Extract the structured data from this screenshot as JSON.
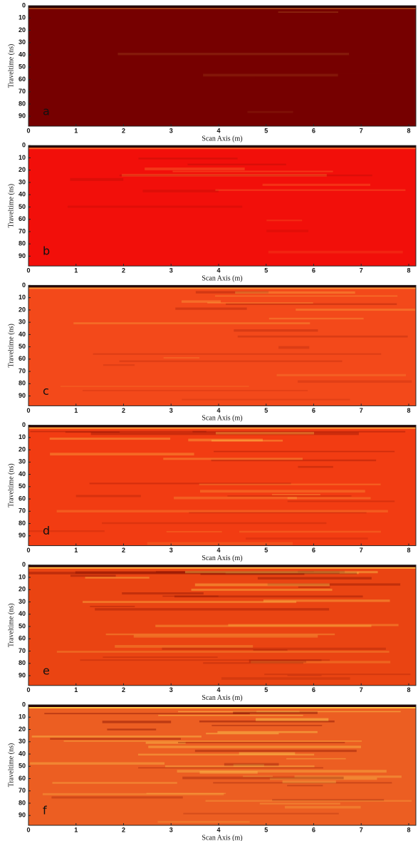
{
  "chart_data": [
    {
      "type": "radargram",
      "panel_label": "a",
      "color": "#760000",
      "xlabel": "Scan Axis (m)",
      "ylabel": "Traveltime (ns)",
      "xlim": [
        0,
        8.15
      ],
      "ylim": [
        0,
        98
      ],
      "xticks": [
        0,
        1,
        2,
        3,
        4,
        5,
        6,
        7,
        8
      ],
      "yticks": [
        0,
        10,
        20,
        30,
        40,
        50,
        60,
        70,
        80,
        90
      ]
    },
    {
      "type": "radargram",
      "panel_label": "b",
      "color": "#f20f0a",
      "xlabel": "Scan Axis (m)",
      "ylabel": "Traveltime (ns)",
      "xlim": [
        0,
        8.15
      ],
      "ylim": [
        0,
        98
      ],
      "xticks": [
        0,
        1,
        2,
        3,
        4,
        5,
        6,
        7,
        8
      ],
      "yticks": [
        0,
        10,
        20,
        30,
        40,
        50,
        60,
        70,
        80,
        90
      ]
    },
    {
      "type": "radargram",
      "panel_label": "c",
      "color": "#f3491a",
      "xlabel": "Scan Axis (m)",
      "ylabel": "Traveltime (ns)",
      "xlim": [
        0,
        8.15
      ],
      "ylim": [
        0,
        98
      ],
      "xticks": [
        0,
        1,
        2,
        3,
        4,
        5,
        6,
        7,
        8
      ],
      "yticks": [
        0,
        10,
        20,
        30,
        40,
        50,
        60,
        70,
        80,
        90
      ]
    },
    {
      "type": "radargram",
      "panel_label": "d",
      "color": "#f23c12",
      "xlabel": "Scan Axis (m)",
      "ylabel": "Traveltime (ns)",
      "xlim": [
        0,
        8.15
      ],
      "ylim": [
        0,
        98
      ],
      "xticks": [
        0,
        1,
        2,
        3,
        4,
        5,
        6,
        7,
        8
      ],
      "yticks": [
        0,
        10,
        20,
        30,
        40,
        50,
        60,
        70,
        80,
        90
      ]
    },
    {
      "type": "radargram",
      "panel_label": "e",
      "color": "#ea4412",
      "xlabel": "Scan Axis (m)",
      "ylabel": "Traveltime (ns)",
      "xlim": [
        0,
        8.15
      ],
      "ylim": [
        0,
        98
      ],
      "xticks": [
        0,
        1,
        2,
        3,
        4,
        5,
        6,
        7,
        8
      ],
      "yticks": [
        0,
        10,
        20,
        30,
        40,
        50,
        60,
        70,
        80,
        90
      ]
    },
    {
      "type": "radargram",
      "panel_label": "f",
      "color": "#ec5e22",
      "xlabel": "Scan Axis (m)",
      "ylabel": "Traveltime (ns)",
      "xlim": [
        0,
        8.15
      ],
      "ylim": [
        0,
        98
      ],
      "xticks": [
        0,
        1,
        2,
        3,
        4,
        5,
        6,
        7,
        8
      ],
      "yticks": [
        0,
        10,
        20,
        30,
        40,
        50,
        60,
        70,
        80,
        90
      ]
    }
  ]
}
